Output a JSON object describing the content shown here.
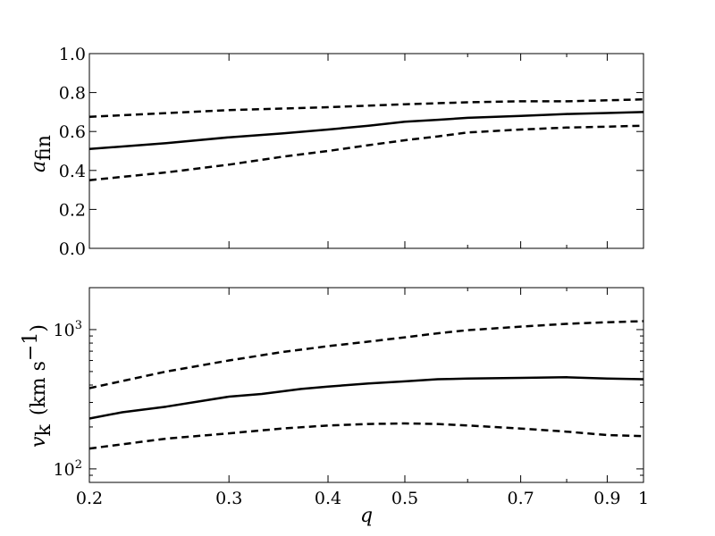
{
  "chart_data": [
    {
      "type": "line",
      "xlabel": "",
      "ylabel": "a_fin",
      "ylabel_main": "a",
      "ylabel_sub": "fin",
      "xscale": "log",
      "yscale": "linear",
      "xlim": [
        0.2,
        1.0
      ],
      "ylim": [
        0.0,
        1.0
      ],
      "yticks": [
        0.0,
        0.2,
        0.4,
        0.6,
        0.8,
        1.0
      ],
      "ytick_labels": [
        "0.0",
        "0.2",
        "0.4",
        "0.6",
        "0.8",
        "1.0"
      ],
      "x_tick_labels_shown": false,
      "grid": false,
      "series": [
        {
          "style": "solid",
          "x": [
            0.2,
            0.25,
            0.3,
            0.35,
            0.4,
            0.45,
            0.5,
            0.55,
            0.6,
            0.7,
            0.8,
            0.9,
            1.0
          ],
          "y": [
            0.51,
            0.54,
            0.57,
            0.59,
            0.61,
            0.63,
            0.65,
            0.66,
            0.67,
            0.68,
            0.69,
            0.695,
            0.7
          ]
        },
        {
          "style": "dashed",
          "x": [
            0.2,
            0.3,
            0.4,
            0.5,
            0.6,
            0.7,
            0.8,
            0.9,
            1.0
          ],
          "y": [
            0.675,
            0.71,
            0.725,
            0.74,
            0.75,
            0.755,
            0.755,
            0.76,
            0.765
          ]
        },
        {
          "style": "dashed",
          "x": [
            0.2,
            0.25,
            0.3,
            0.35,
            0.4,
            0.45,
            0.5,
            0.55,
            0.6,
            0.7,
            0.8,
            0.9,
            1.0
          ],
          "y": [
            0.35,
            0.39,
            0.43,
            0.47,
            0.5,
            0.53,
            0.555,
            0.575,
            0.595,
            0.61,
            0.62,
            0.625,
            0.63
          ]
        }
      ]
    },
    {
      "type": "line",
      "xlabel": "q",
      "ylabel": "v_k (km s^-1)",
      "ylabel_main": "v",
      "ylabel_sub": "k",
      "ylabel_units": "(km s",
      "ylabel_exp": "−1",
      "ylabel_close": ")",
      "xscale": "log",
      "yscale": "log",
      "xlim": [
        0.2,
        1.0
      ],
      "ylim": [
        80,
        2000
      ],
      "xticks": [
        0.2,
        0.3,
        0.4,
        0.5,
        0.7,
        0.9,
        1.0
      ],
      "xtick_labels": [
        "0.2",
        "0.3",
        "0.4",
        "0.5",
        "0.7",
        "0.9",
        "1"
      ],
      "yticks_major": [
        100,
        1000
      ],
      "ytick_labels": [
        {
          "base": "10",
          "exp": "2"
        },
        {
          "base": "10",
          "exp": "3"
        }
      ],
      "grid": false,
      "series": [
        {
          "style": "solid",
          "x": [
            0.2,
            0.22,
            0.25,
            0.3,
            0.33,
            0.37,
            0.4,
            0.45,
            0.5,
            0.55,
            0.6,
            0.7,
            0.8,
            0.9,
            1.0
          ],
          "y": [
            230,
            255,
            280,
            330,
            345,
            375,
            390,
            410,
            425,
            440,
            445,
            450,
            455,
            445,
            440
          ]
        },
        {
          "style": "dashed",
          "x": [
            0.2,
            0.25,
            0.3,
            0.35,
            0.4,
            0.45,
            0.5,
            0.55,
            0.6,
            0.7,
            0.8,
            0.9,
            1.0
          ],
          "y": [
            380,
            500,
            600,
            690,
            760,
            820,
            880,
            940,
            990,
            1050,
            1100,
            1130,
            1150
          ]
        },
        {
          "style": "dashed",
          "x": [
            0.2,
            0.25,
            0.3,
            0.35,
            0.4,
            0.45,
            0.5,
            0.55,
            0.6,
            0.7,
            0.8,
            0.9,
            1.0
          ],
          "y": [
            140,
            165,
            180,
            195,
            205,
            210,
            212,
            210,
            205,
            195,
            185,
            175,
            172
          ]
        }
      ]
    }
  ]
}
